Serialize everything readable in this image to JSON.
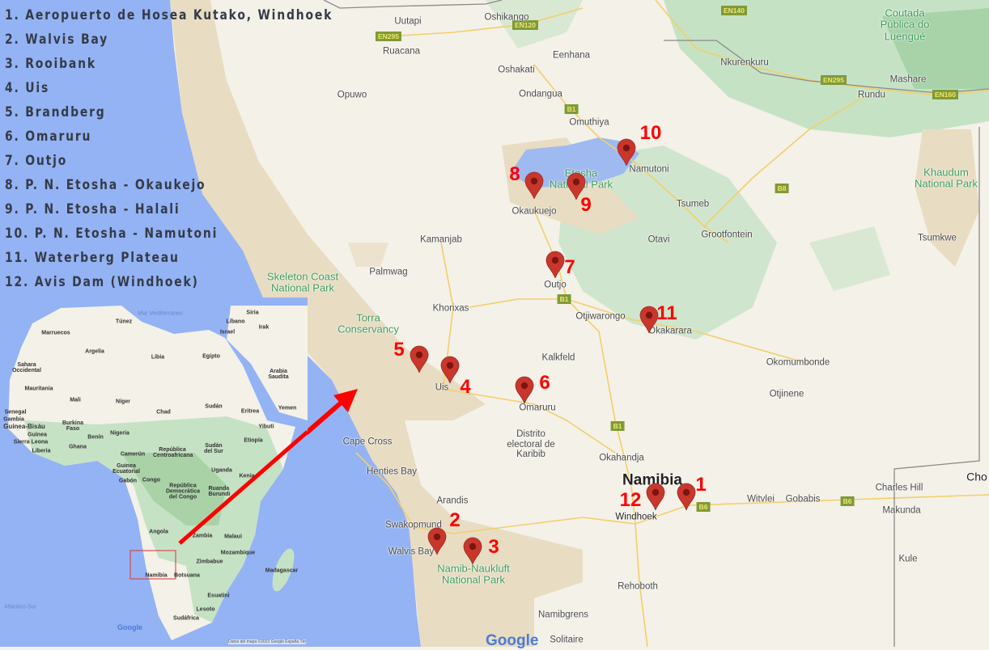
{
  "legend": [
    "1. Aeropuerto de Hosea Kutako, Windhoek",
    "2. Walvis Bay",
    "3. Rooibank",
    "4. Uis",
    "5. Brandberg",
    "6. Omaruru",
    "7. Outjo",
    "8. P. N. Etosha - Okaukejo",
    "9. P. N. Etosha - Halali",
    "10. P. N. Etosha - Namutoni",
    "11. Waterberg Plateau",
    "12. Avis Dam (Windhoek)"
  ],
  "markers": [
    "1",
    "2",
    "3",
    "4",
    "5",
    "6",
    "7",
    "8",
    "9",
    "10",
    "11",
    "12"
  ],
  "colors": {
    "ocean": "#94b3f4",
    "land": "#f4f1e8",
    "desert": "#e8dcc2",
    "green": "#c6e2c5",
    "marker": "#c9372c",
    "arrow": "#ff0000",
    "numbers": "#ff0000"
  },
  "places": {
    "uutapi": "Uutapi",
    "oshikango": "Oshikango",
    "ruacana": "Ruacana",
    "eenhana": "Eenhana",
    "oshakati": "Oshakati",
    "ondangua": "Ondangua",
    "opuwo": "Opuwo",
    "omuthiya": "Omuthiya",
    "namutoni": "Namutoni",
    "etosha": "Etosha National Park",
    "okaukuejo": "Okaukuejo",
    "tsumeb": "Tsumeb",
    "grootfontein": "Grootfontein",
    "otavi": "Otavi",
    "kamanjab": "Kamanjab",
    "palmwag": "Palmwag",
    "skeleton": "Skeleton Coast National Park",
    "outjo": "Outjo",
    "khorixas": "Khorixas",
    "otjiwarongo": "Otjiwarongo",
    "okakarara": "Okakarara",
    "torra": "Torra Conservancy",
    "kalkfeld": "Kalkfeld",
    "okomumbonde": "Okomumbonde",
    "otjinene": "Otjinene",
    "uis": "Uis",
    "omaruru": "Omaruru",
    "karibib": "Distrito electoral de Karibib",
    "capecross": "Cape Cross",
    "okahandja": "Okahandja",
    "hentiesbay": "Henties Bay",
    "namibia": "Namibia",
    "windhoek": "Windhoek",
    "witvlei": "Witvlei",
    "gobabis": "Gobabis",
    "charleshill": "Charles Hill",
    "makunda": "Makunda",
    "cho": "Cho",
    "arandis": "Arandis",
    "swakopmund": "Swakopmund",
    "walvisbay": "Walvis Bay",
    "naukluft": "Namib-Naukluft National Park",
    "rehoboth": "Rehoboth",
    "namibgrens": "Namibgrens",
    "kule": "Kule",
    "solitaire": "Solitaire",
    "nkurenkuru": "Nkurenkuru",
    "mashare": "Mashare",
    "rundu": "Rundu",
    "luengue": "Coutada Pública do Luengué",
    "khaudum": "Khaudum National Park",
    "tsumkwe": "Tsumkwe"
  },
  "roads": {
    "en140": "EN140",
    "en120": "EN120",
    "en295a": "EN295",
    "en295b": "EN295",
    "en160": "EN160",
    "b1a": "B1",
    "b8": "B8",
    "b1b": "B1",
    "b1c": "B1",
    "b6a": "B6",
    "b6b": "B6"
  },
  "inset": {
    "countries": {
      "marruecos": "Marruecos",
      "tunez": "Túnez",
      "argelia": "Argelia",
      "libia": "Libia",
      "egipto": "Egipto",
      "siria": "Siria",
      "libano": "Líbano",
      "israel": "Israel",
      "irak": "Irak",
      "sahara": "Sahara Occidental",
      "mauritania": "Mauritania",
      "mali": "Mali",
      "niger": "Níger",
      "chad": "Chad",
      "sudan": "Sudán",
      "arabia": "Arabia Saudita",
      "yemen": "Yemen",
      "eritrea": "Eritrea",
      "senegal": "Senegal",
      "gambia": "Gambia",
      "guineabissau": "Guinea-Bisáu",
      "guinea": "Guinea",
      "sierraleona": "Sierra Leona",
      "liberia": "Liberia",
      "burkina": "Burkina Faso",
      "benin": "Benín",
      "ghana": "Ghana",
      "nigeria": "Nigeria",
      "camerun": "Camerún",
      "rca": "República Centroafricana",
      "sudansur": "Sudán del Sur",
      "etiopia": "Etiopía",
      "yibuti": "Yibuti",
      "guineaec": "Guinea Ecuatorial",
      "gabon": "Gabón",
      "congo": "Congo",
      "uganda": "Uganda",
      "kenia": "Kenia",
      "rdc": "República Democrática del Congo",
      "ruanda": "Ruanda Burundi",
      "angola": "Angola",
      "zambia": "Zambia",
      "malaui": "Malaui",
      "mozambique": "Mozambique",
      "zimbabue": "Zimbabue",
      "namibia": "Namibia",
      "botsuana": "Botsuana",
      "madagascar": "Madagascar",
      "esuatini": "Esuatini",
      "lesoto": "Lesoto",
      "sudafrica": "Sudáfrica"
    },
    "seas": {
      "atlantico": "Atlántico Sur",
      "mediterraneo": "Mar Mediterráneo"
    },
    "attribution": "Datos del mapa ©2022 Google   España   Tér",
    "google": "Google"
  },
  "google_logo": "Google"
}
